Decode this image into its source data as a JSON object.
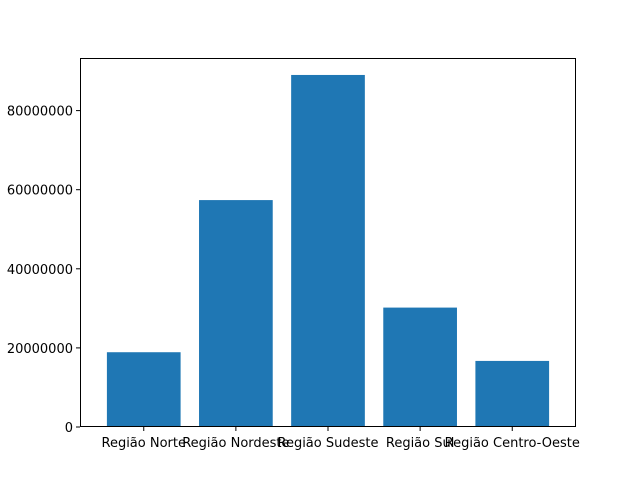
{
  "chart_data": {
    "type": "bar",
    "title": "",
    "xlabel": "",
    "ylabel": "",
    "categories": [
      "Região Norte",
      "Região Nordeste",
      "Região Sudeste",
      "Região Sul",
      "Região Centro-Oeste"
    ],
    "values": [
      18906962,
      57374243,
      89012240,
      30192315,
      16707336
    ],
    "ylim": [
      0,
      93300000
    ],
    "yticks": [
      0,
      20000000,
      40000000,
      60000000,
      80000000
    ],
    "ytick_labels": [
      "0",
      "20000000",
      "40000000",
      "60000000",
      "80000000"
    ],
    "grid": false,
    "bar_color": "#1f77b4"
  }
}
